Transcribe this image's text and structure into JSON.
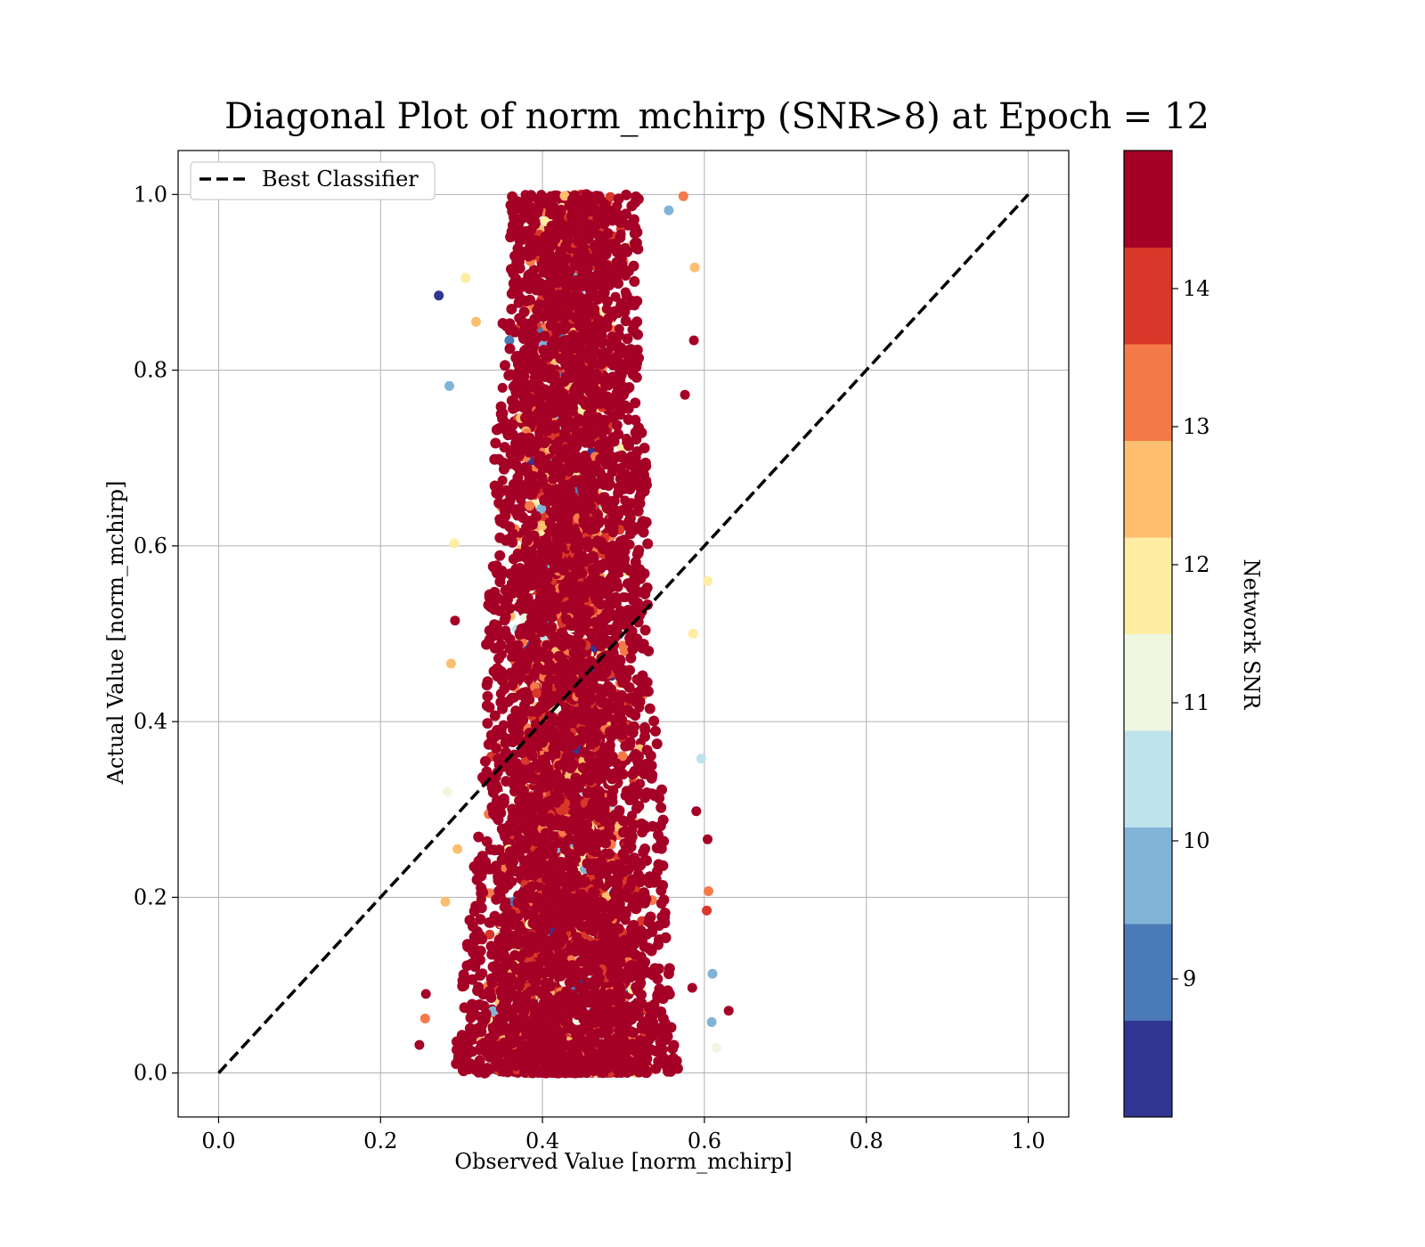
{
  "chart_data": {
    "type": "scatter",
    "title": "Diagonal Plot of norm_mchirp (SNR>8) at Epoch = 12",
    "xlabel": "Observed Value [norm_mchirp]",
    "ylabel": "Actual Value [norm_mchirp]",
    "xlim": [
      -0.05,
      1.05
    ],
    "ylim": [
      -0.05,
      1.05
    ],
    "xticks": [
      "0.0",
      "0.2",
      "0.4",
      "0.6",
      "0.8",
      "1.0"
    ],
    "yticks": [
      "0.0",
      "0.2",
      "0.4",
      "0.6",
      "0.8",
      "1.0"
    ],
    "xtick_values": [
      0.0,
      0.2,
      0.4,
      0.6,
      0.8,
      1.0
    ],
    "ytick_values": [
      0.0,
      0.2,
      0.4,
      0.6,
      0.8,
      1.0
    ],
    "grid": true,
    "legend": {
      "placement": "upper-left",
      "entries": [
        {
          "label": "Best Classifier",
          "style": "dashed",
          "color": "#000000"
        }
      ]
    },
    "reference_line": {
      "name": "Best Classifier",
      "x": [
        0.0,
        1.0
      ],
      "y": [
        0.0,
        1.0
      ]
    },
    "scatter_envelope": {
      "note_y": [
        0.0,
        0.1,
        0.2,
        0.3,
        0.4,
        0.5,
        0.6,
        0.7,
        0.8,
        0.9,
        1.0
      ],
      "x_min": [
        0.26,
        0.27,
        0.28,
        0.29,
        0.3,
        0.3,
        0.31,
        0.31,
        0.32,
        0.32,
        0.33
      ],
      "x_max": [
        0.6,
        0.59,
        0.58,
        0.58,
        0.57,
        0.56,
        0.56,
        0.56,
        0.55,
        0.55,
        0.55
      ],
      "dense_center_x": 0.43
    },
    "outlier_points": [
      {
        "x": 0.272,
        "y": 0.885,
        "snr": 8.3
      },
      {
        "x": 0.285,
        "y": 0.782,
        "snr": 9.8
      },
      {
        "x": 0.588,
        "y": 0.917,
        "snr": 12.6
      },
      {
        "x": 0.574,
        "y": 0.998,
        "snr": 13.2
      },
      {
        "x": 0.556,
        "y": 0.982,
        "snr": 9.8
      },
      {
        "x": 0.587,
        "y": 0.834,
        "snr": 14.5
      },
      {
        "x": 0.604,
        "y": 0.56,
        "snr": 12.0
      },
      {
        "x": 0.596,
        "y": 0.358,
        "snr": 10.4
      },
      {
        "x": 0.604,
        "y": 0.266,
        "snr": 14.5
      },
      {
        "x": 0.63,
        "y": 0.071,
        "snr": 14.5
      },
      {
        "x": 0.615,
        "y": 0.029,
        "snr": 11.4
      },
      {
        "x": 0.605,
        "y": 0.207,
        "snr": 13.3
      },
      {
        "x": 0.603,
        "y": 0.185,
        "snr": 13.8
      },
      {
        "x": 0.61,
        "y": 0.113,
        "snr": 9.8
      },
      {
        "x": 0.609,
        "y": 0.058,
        "snr": 9.8
      },
      {
        "x": 0.248,
        "y": 0.032,
        "snr": 14.5
      },
      {
        "x": 0.255,
        "y": 0.062,
        "snr": 13.3
      },
      {
        "x": 0.256,
        "y": 0.09,
        "snr": 14.5
      },
      {
        "x": 0.28,
        "y": 0.195,
        "snr": 12.6
      },
      {
        "x": 0.283,
        "y": 0.32,
        "snr": 11.4
      },
      {
        "x": 0.292,
        "y": 0.515,
        "snr": 14.5
      },
      {
        "x": 0.287,
        "y": 0.466,
        "snr": 12.6
      },
      {
        "x": 0.291,
        "y": 0.603,
        "snr": 12.0
      },
      {
        "x": 0.305,
        "y": 0.905,
        "snr": 12.0
      },
      {
        "x": 0.318,
        "y": 0.855,
        "snr": 12.6
      },
      {
        "x": 0.295,
        "y": 0.255,
        "snr": 12.6
      },
      {
        "x": 0.586,
        "y": 0.5,
        "snr": 12.0
      },
      {
        "x": 0.59,
        "y": 0.298,
        "snr": 14.5
      },
      {
        "x": 0.585,
        "y": 0.097,
        "snr": 14.5
      },
      {
        "x": 0.576,
        "y": 0.772,
        "snr": 14.5
      }
    ],
    "colorbar": {
      "label": "Network SNR",
      "min": 8.0,
      "max": 15.0,
      "ticks": [
        "9",
        "10",
        "11",
        "12",
        "13",
        "14"
      ],
      "tick_values": [
        9,
        10,
        11,
        12,
        13,
        14
      ],
      "bins": [
        {
          "from": 8.0,
          "to": 8.7,
          "color": "#313695"
        },
        {
          "from": 8.7,
          "to": 9.4,
          "color": "#4a7ab7"
        },
        {
          "from": 9.4,
          "to": 10.1,
          "color": "#81b3d6"
        },
        {
          "from": 10.1,
          "to": 10.8,
          "color": "#bee3ed"
        },
        {
          "from": 10.8,
          "to": 11.5,
          "color": "#eff7e1"
        },
        {
          "from": 11.5,
          "to": 12.2,
          "color": "#feeda2"
        },
        {
          "from": 12.2,
          "to": 12.9,
          "color": "#fdbe70"
        },
        {
          "from": 12.9,
          "to": 13.6,
          "color": "#f57a49"
        },
        {
          "from": 13.6,
          "to": 14.3,
          "color": "#d93729"
        },
        {
          "from": 14.3,
          "to": 15.0,
          "color": "#a50026"
        }
      ]
    }
  }
}
